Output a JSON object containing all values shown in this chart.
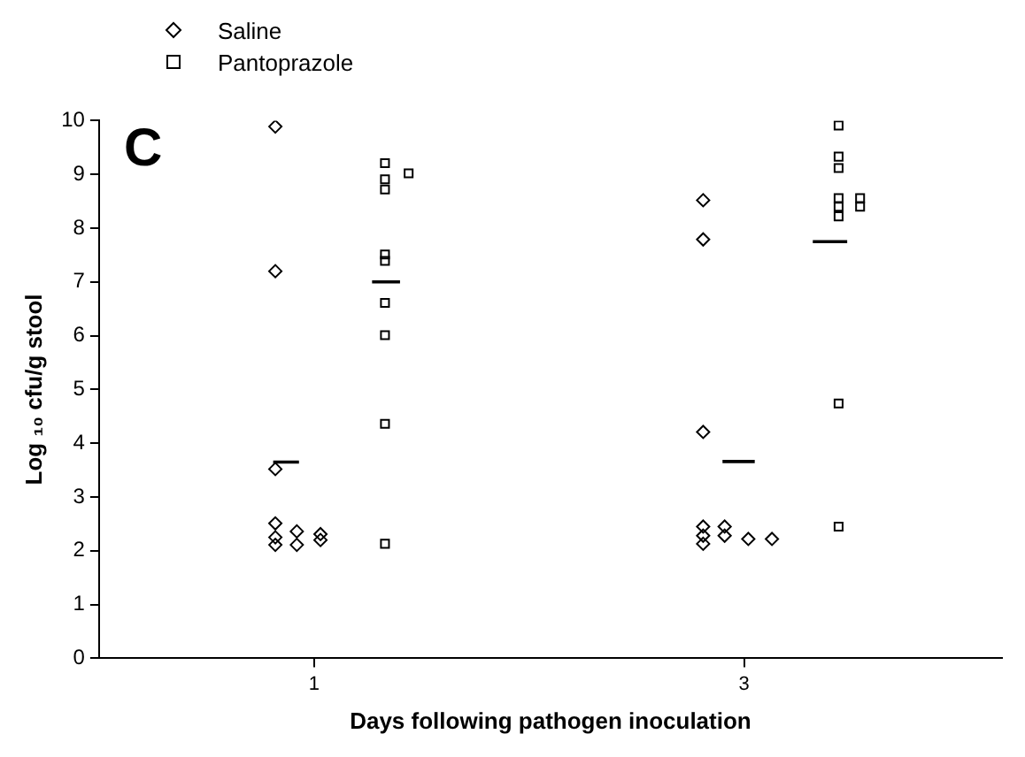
{
  "chart_data": {
    "type": "scatter",
    "xlabel": "Days following pathogen inoculation",
    "ylabel": "Log ₁₀ cfu/g stool",
    "annotations": [
      "C"
    ],
    "xlim": [
      0,
      4.2
    ],
    "xticks": [
      1,
      3
    ],
    "ylim": [
      0,
      10
    ],
    "yticks": [
      0,
      1,
      2,
      3,
      4,
      5,
      6,
      7,
      8,
      9,
      10
    ],
    "grid": false,
    "legend": "top left",
    "series": [
      {
        "name": "Saline",
        "type": "scatter",
        "marker": "diamond",
        "color": "#000000",
        "x": [
          0.82,
          0.82,
          0.82,
          0.82,
          0.82,
          0.82,
          0.92,
          0.92,
          1.03,
          1.03,
          2.81,
          2.81,
          2.81,
          2.81,
          2.81,
          2.81,
          2.91,
          2.91,
          3.02,
          3.13
        ],
        "values": [
          9.89,
          7.2,
          3.52,
          2.51,
          2.25,
          2.11,
          2.36,
          2.11,
          2.31,
          2.2,
          8.52,
          7.79,
          4.21,
          2.45,
          2.28,
          2.13,
          2.45,
          2.28,
          2.22,
          2.22
        ]
      },
      {
        "name": "Pantoprazole",
        "type": "scatter",
        "marker": "square",
        "color": "#000000",
        "x": [
          1.33,
          1.33,
          1.33,
          1.33,
          1.33,
          1.33,
          1.33,
          1.33,
          1.33,
          1.44,
          3.44,
          3.44,
          3.44,
          3.44,
          3.44,
          3.44,
          3.44,
          3.44,
          3.54,
          3.54
        ],
        "values": [
          9.21,
          8.91,
          8.72,
          7.51,
          7.39,
          6.61,
          6.01,
          4.36,
          2.13,
          9.02,
          9.91,
          9.33,
          9.12,
          8.56,
          8.4,
          8.22,
          4.74,
          2.45,
          8.56,
          8.4
        ]
      },
      {
        "type": "line",
        "marker": "none",
        "color": "#000000",
        "x": [
          0.81,
          0.93,
          2.0,
          2.9,
          3.05
        ],
        "values": [
          3.65,
          3.65,
          null,
          3.66,
          3.66
        ]
      },
      {
        "type": "line",
        "marker": "none",
        "color": "#000000",
        "x": [
          1.27,
          1.4,
          2.0,
          3.32,
          3.48
        ],
        "values": [
          7.0,
          7.0,
          null,
          7.75,
          7.75
        ]
      }
    ]
  }
}
